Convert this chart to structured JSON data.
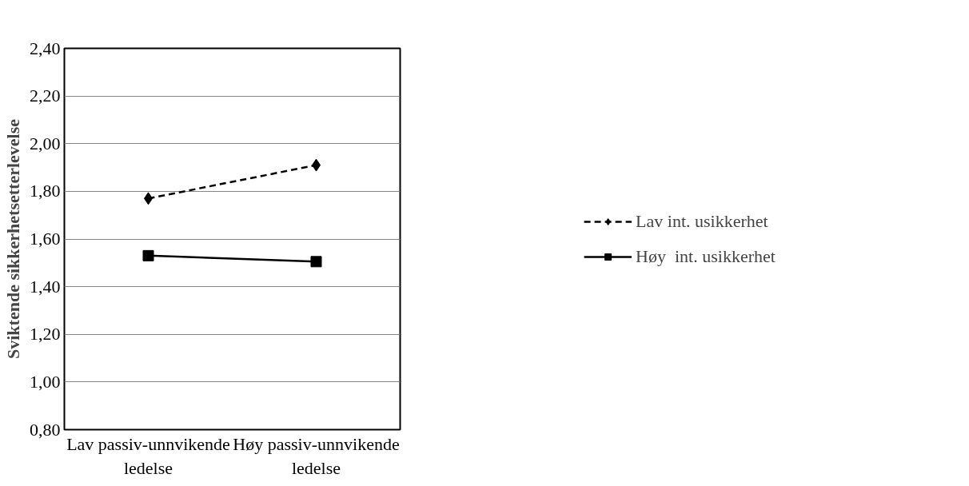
{
  "chart_data": {
    "type": "line",
    "ylabel": "Sviktende sikkerhetsetterlevelse",
    "categories": [
      "Lav passiv-unnvikende ledelse",
      "Høy passiv-unnvikende ledelse"
    ],
    "series": [
      {
        "name": "Lav int. usikkerhet",
        "color": "#000000",
        "values": [
          1.77,
          1.91
        ],
        "marker": "diamond",
        "line_style": "dashed"
      },
      {
        "name": "Høy  int. usikkerhet",
        "color": "#000000",
        "values": [
          1.53,
          1.505
        ],
        "marker": "square",
        "line_style": "solid"
      }
    ],
    "ylim": [
      0.8,
      2.4
    ],
    "yticks": [
      {
        "value": 0.8,
        "label": "0,80"
      },
      {
        "value": 1.0,
        "label": "1,00"
      },
      {
        "value": 1.2,
        "label": "1,20"
      },
      {
        "value": 1.4,
        "label": "1,40"
      },
      {
        "value": 1.6,
        "label": "1,60"
      },
      {
        "value": 1.8,
        "label": "1,80"
      },
      {
        "value": 2.0,
        "label": "2,00"
      },
      {
        "value": 2.2,
        "label": "2,20"
      },
      {
        "value": 2.4,
        "label": "2,40"
      }
    ],
    "grid": "y",
    "legend": "right"
  }
}
